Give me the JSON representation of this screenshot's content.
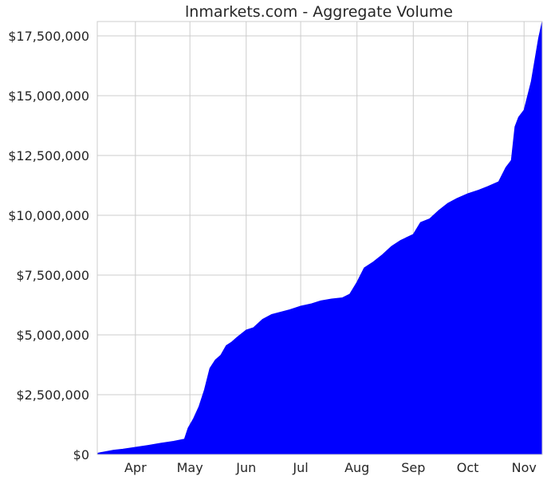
{
  "chart_data": {
    "type": "area",
    "title": "lnmarkets.com - Aggregate Volume",
    "xlabel": "",
    "ylabel": "",
    "x_tick_labels": [
      "Apr",
      "May",
      "Jun",
      "Jul",
      "Aug",
      "Sep",
      "Oct",
      "Nov"
    ],
    "y_tick_labels": [
      "$0",
      "$2,500,000",
      "$5,000,000",
      "$7,500,000",
      "$10,000,000",
      "$12,500,000",
      "$15,000,000",
      "$17,500,000"
    ],
    "y_tick_values": [
      0,
      2500000,
      5000000,
      7500000,
      10000000,
      12500000,
      15000000,
      17500000
    ],
    "ylim": [
      0,
      18100000
    ],
    "xlim": [
      "2021-03-11",
      "2021-11-11"
    ],
    "grid": true,
    "fill_color": "#0000ff",
    "series": [
      {
        "x": [
          "2021-03-11",
          "2021-03-15",
          "2021-03-20",
          "2021-03-25",
          "2021-04-01",
          "2021-04-08",
          "2021-04-15",
          "2021-04-22",
          "2021-04-28",
          "2021-04-30",
          "2021-05-03",
          "2021-05-06",
          "2021-05-09",
          "2021-05-12",
          "2021-05-15",
          "2021-05-18",
          "2021-05-21",
          "2021-05-24",
          "2021-05-27",
          "2021-06-01",
          "2021-06-05",
          "2021-06-10",
          "2021-06-15",
          "2021-06-20",
          "2021-06-25",
          "2021-07-01",
          "2021-07-07",
          "2021-07-12",
          "2021-07-18",
          "2021-07-24",
          "2021-07-28",
          "2021-08-01",
          "2021-08-05",
          "2021-08-10",
          "2021-08-15",
          "2021-08-20",
          "2021-08-25",
          "2021-09-01",
          "2021-09-05",
          "2021-09-10",
          "2021-09-15",
          "2021-09-20",
          "2021-09-25",
          "2021-10-01",
          "2021-10-07",
          "2021-10-12",
          "2021-10-18",
          "2021-10-22",
          "2021-10-25",
          "2021-10-27",
          "2021-10-29",
          "2021-11-01",
          "2021-11-03",
          "2021-11-05",
          "2021-11-07",
          "2021-11-09",
          "2021-11-11"
        ],
        "y": [
          50000,
          110000,
          180000,
          220000,
          300000,
          380000,
          470000,
          550000,
          640000,
          1100000,
          1500000,
          2000000,
          2700000,
          3600000,
          3950000,
          4150000,
          4550000,
          4700000,
          4900000,
          5200000,
          5300000,
          5650000,
          5850000,
          5950000,
          6050000,
          6200000,
          6300000,
          6420000,
          6500000,
          6550000,
          6700000,
          7200000,
          7800000,
          8050000,
          8350000,
          8700000,
          8950000,
          9200000,
          9700000,
          9850000,
          10200000,
          10500000,
          10700000,
          10900000,
          11050000,
          11200000,
          11400000,
          12000000,
          12300000,
          13700000,
          14100000,
          14400000,
          15000000,
          15600000,
          16500000,
          17400000,
          18100000
        ]
      }
    ]
  }
}
